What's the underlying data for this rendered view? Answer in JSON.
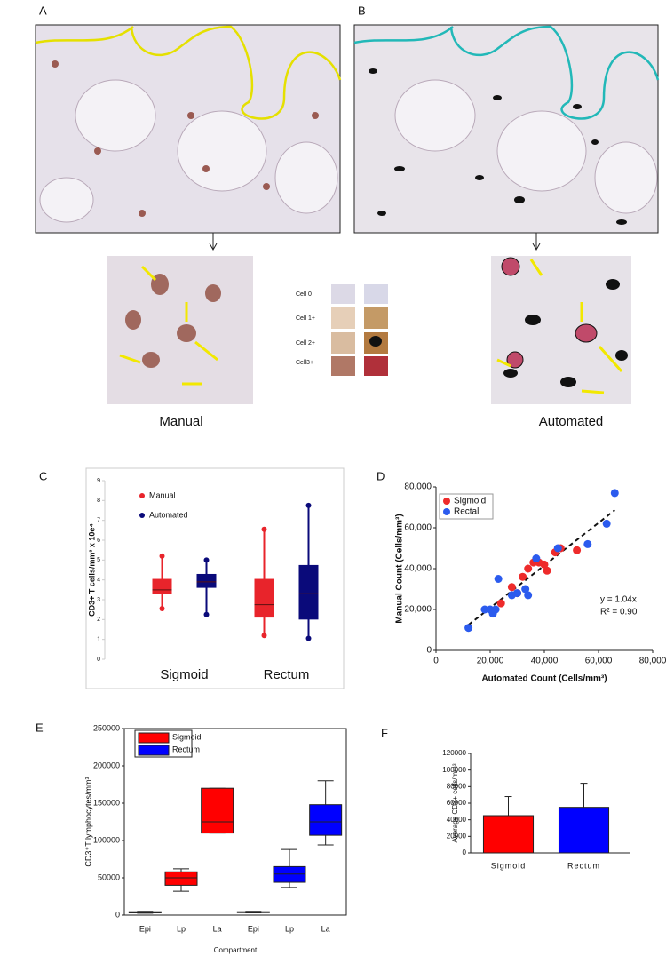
{
  "panel_labels": [
    "A",
    "B",
    "C",
    "D",
    "E",
    "F"
  ],
  "images": {
    "captions": [
      "Manual",
      "Automated"
    ],
    "cell_scores": [
      "Cell 0",
      "Cell 1+",
      "Cell 2+",
      "Cell3+"
    ]
  },
  "chart_data": [
    {
      "type": "box",
      "ylabel": "CD3+  T cells/mm³ x 10e⁴",
      "ylim": [
        0,
        9
      ],
      "yticks": [
        0,
        1,
        2,
        3,
        4,
        5,
        6,
        7,
        8,
        9
      ],
      "categories": [
        "Sigmoid",
        "Rectum"
      ],
      "series": [
        {
          "name": "Manual",
          "color": "#e8242b",
          "values": [
            [
              2.55,
              3.3,
              3.5,
              4.05,
              5.2
            ],
            [
              1.2,
              2.1,
              2.75,
              4.05,
              6.55
            ]
          ]
        },
        {
          "name": "Automated",
          "color": "#0a0a7a",
          "values": [
            [
              2.25,
              3.6,
              3.9,
              4.3,
              5.0
            ],
            [
              1.05,
              2.0,
              3.3,
              4.75,
              7.75
            ]
          ]
        }
      ]
    },
    {
      "type": "scatter",
      "xlabel": "Automated Count (Cells/mm³)",
      "ylabel": "Manual Count (Cells/mm³)",
      "xlim": [
        0,
        80000
      ],
      "ylim": [
        0,
        80000
      ],
      "xticks": [
        0,
        {
          "value": 20000,
          "label": "20,000"
        },
        {
          "value": 40000,
          "label": "40,000"
        },
        {
          "value": 60000,
          "label": "60,000"
        },
        {
          "value": 80000,
          "label": "80,000"
        }
      ],
      "yticks": [
        0,
        {
          "value": 20000,
          "label": "20,000"
        },
        {
          "value": 40000,
          "label": "40,000"
        },
        {
          "value": 60000,
          "label": "60,000"
        },
        {
          "value": 80000,
          "label": "80,000"
        }
      ],
      "legend": "upper left",
      "series": [
        {
          "name": "Sigmoid",
          "color": "#ee2b2b",
          "x": [
            24000,
            28000,
            30000,
            32000,
            34000,
            36000,
            38000,
            40000,
            41000,
            44000,
            46000,
            52000
          ],
          "values": [
            23000,
            31000,
            28000,
            36000,
            40000,
            43000,
            43000,
            42000,
            39000,
            48000,
            50000,
            49000
          ]
        },
        {
          "name": "Rectal",
          "color": "#2b5bee",
          "x": [
            12000,
            18000,
            20000,
            21000,
            22000,
            23000,
            28000,
            30000,
            33000,
            34000,
            37000,
            45000,
            56000,
            63000,
            66000
          ],
          "values": [
            11000,
            20000,
            20000,
            18000,
            20000,
            35000,
            27000,
            28000,
            30000,
            27000,
            45000,
            50000,
            52000,
            62000,
            77000
          ]
        }
      ],
      "trend_slope": 1.04,
      "annotations": [
        "y = 1.04x",
        "R² = 0.90"
      ]
    },
    {
      "type": "box",
      "ylabel": "CD3⁺T lymphocytes/mm³",
      "xlabel": "Compartment",
      "ylim": [
        0,
        250000
      ],
      "yticks": [
        0,
        50000,
        100000,
        150000,
        200000,
        250000
      ],
      "categories": [
        "Epi",
        "Lp",
        "La",
        "Epi",
        "Lp",
        "La"
      ],
      "series": [
        {
          "name": "Sigmoid",
          "color": "#ff0000",
          "values": [
            [
              2500,
              3000,
              3500,
              4500,
              5000
            ],
            [
              32000,
              40000,
              50000,
              58000,
              62000
            ],
            [
              110000,
              110000,
              125000,
              170000,
              170000
            ],
            null,
            null,
            null
          ]
        },
        {
          "name": "Rectum",
          "color": "#0000ff",
          "values": [
            null,
            null,
            null,
            [
              3000,
              3500,
              4000,
              4500,
              5000
            ],
            [
              37000,
              44000,
              55000,
              65000,
              88000
            ],
            [
              94000,
              107000,
              125000,
              148000,
              180000
            ]
          ]
        }
      ]
    },
    {
      "type": "bar",
      "ylabel": "Average CD3+ cells/mm³",
      "ylim": [
        0,
        120000
      ],
      "yticks": [
        0,
        20000,
        40000,
        60000,
        80000,
        100000,
        120000
      ],
      "categories": [
        "Sigmoid",
        "Rectum"
      ],
      "values": [
        45000,
        55000
      ],
      "errors": [
        23000,
        29000
      ],
      "colors": [
        "#ff0000",
        "#0000ff"
      ]
    }
  ]
}
